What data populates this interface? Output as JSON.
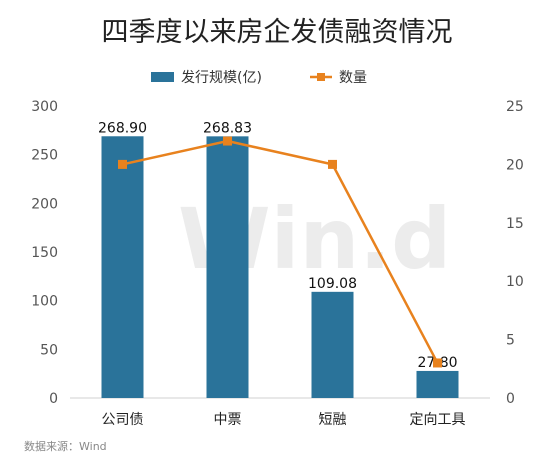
{
  "chart_data": {
    "type": "bar",
    "title": "四季度以来房企发债融资情况",
    "categories": [
      "公司债",
      "中票",
      "短融",
      "定向工具"
    ],
    "series": [
      {
        "name": "发行规模(亿)",
        "type": "bar",
        "axis": "left",
        "values": [
          268.9,
          268.83,
          109.08,
          27.8
        ],
        "labels": [
          "268.90",
          "268.83",
          "109.08",
          "27.80"
        ],
        "color": "#2a739a"
      },
      {
        "name": "数量",
        "type": "line",
        "axis": "right",
        "values": [
          20,
          22,
          20,
          3
        ],
        "color": "#e8821e"
      }
    ],
    "y_left": {
      "min": 0,
      "max": 300,
      "ticks": [
        "0",
        "50",
        "100",
        "150",
        "200",
        "250",
        "300"
      ]
    },
    "y_right": {
      "min": 0,
      "max": 25,
      "ticks": [
        "0",
        "5",
        "10",
        "15",
        "20",
        "25"
      ]
    },
    "legend_position": "top-center",
    "grid": false,
    "source": "数据来源：Wind",
    "watermark": "Win.d"
  }
}
